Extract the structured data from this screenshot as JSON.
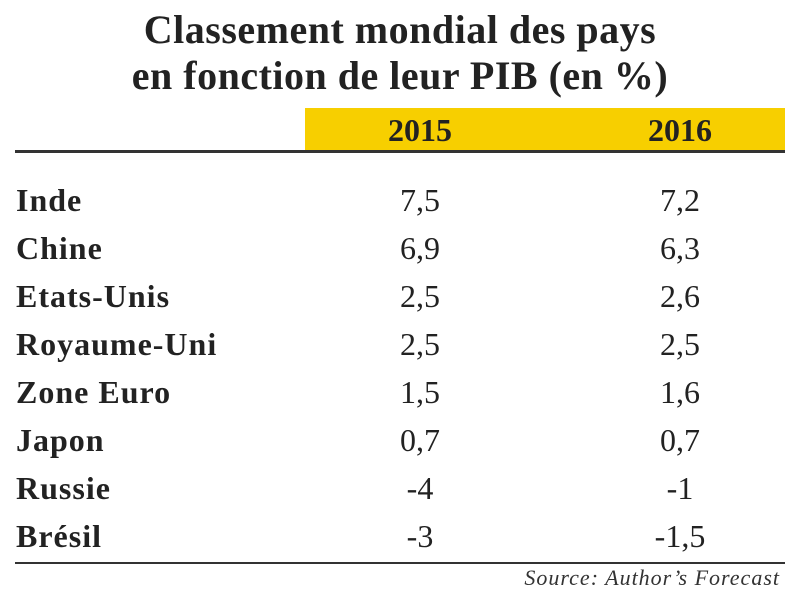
{
  "header": {
    "title_lines": [
      "Classement mondial des pays",
      "en fonction de leur PIB (en %)"
    ]
  },
  "table": {
    "columns": [
      "2015",
      "2016"
    ],
    "rows": [
      [
        "Inde",
        "7,5",
        "7,2"
      ],
      [
        "Chine",
        "6,9",
        "6,3"
      ],
      [
        "Etats-Unis",
        "2,5",
        "2,6"
      ],
      [
        "Royaume-Uni",
        "2,5",
        "2,5"
      ],
      [
        "Zone Euro",
        "1,5",
        "1,6"
      ],
      [
        "Japon",
        "0,7",
        "0,7"
      ],
      [
        "Russie",
        "-4",
        "-1"
      ],
      [
        "Brésil",
        "-3",
        "-1,5"
      ]
    ]
  },
  "footer": {
    "source": "Source: Author’s Forecast"
  }
}
